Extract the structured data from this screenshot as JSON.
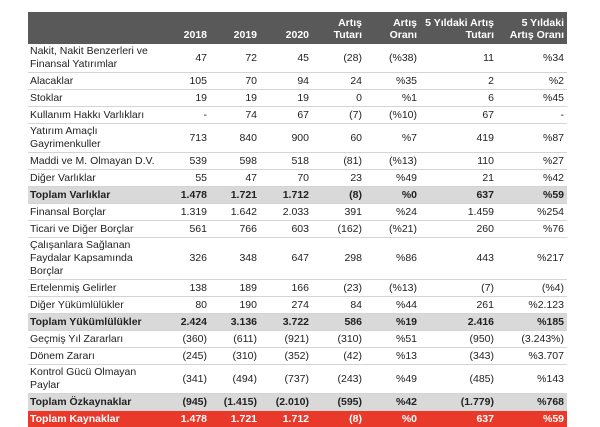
{
  "table": {
    "columns": [
      "2018",
      "2019",
      "2020",
      "Artış Tutarı",
      "Artış Oranı",
      "5 Yıldaki Artış Tutarı",
      "5 Yıldaki Artış Oranı"
    ],
    "rows": [
      [
        "Nakit, Nakit Benzerleri ve Finansal Yatırımlar",
        "47",
        "72",
        "45",
        "(28)",
        "(%38)",
        "11",
        "%34"
      ],
      [
        "Alacaklar",
        "105",
        "70",
        "94",
        "24",
        "%35",
        "2",
        "%2"
      ],
      [
        "Stoklar",
        "19",
        "19",
        "19",
        "0",
        "%1",
        "6",
        "%45"
      ],
      [
        "Kullanım Hakkı Varlıkları",
        "-",
        "74",
        "67",
        "(7)",
        "(%10)",
        "67",
        "-"
      ],
      [
        "Yatırım Amaçlı Gayrimenkuller",
        "713",
        "840",
        "900",
        "60",
        "%7",
        "419",
        "%87"
      ],
      [
        "Maddi ve M. Olmayan D.V.",
        "539",
        "598",
        "518",
        "(81)",
        "(%13)",
        "110",
        "%27"
      ],
      [
        "Diğer Varlıklar",
        "55",
        "47",
        "70",
        "23",
        "%49",
        "21",
        "%42"
      ],
      [
        "Toplam Varlıklar",
        "1.478",
        "1.721",
        "1.712",
        "(8)",
        "%0",
        "637",
        "%59"
      ],
      [
        "Finansal Borçlar",
        "1.319",
        "1.642",
        "2.033",
        "391",
        "%24",
        "1.459",
        "%254"
      ],
      [
        "Ticari ve Diğer Borçlar",
        "561",
        "766",
        "603",
        "(162)",
        "(%21)",
        "260",
        "%76"
      ],
      [
        "Çalışanlara Sağlanan Faydalar Kapsamında Borçlar",
        "326",
        "348",
        "647",
        "298",
        "%86",
        "443",
        "%217"
      ],
      [
        "Ertelenmiş Gelirler",
        "138",
        "189",
        "166",
        "(23)",
        "(%13)",
        "(7)",
        "(%4)"
      ],
      [
        "Diğer Yükümlülükler",
        "80",
        "190",
        "274",
        "84",
        "%44",
        "261",
        "%2.123"
      ],
      [
        "Toplam Yükümlülükler",
        "2.424",
        "3.136",
        "3.722",
        "586",
        "%19",
        "2.416",
        "%185"
      ],
      [
        "Geçmiş Yıl Zararları",
        "(360)",
        "(611)",
        "(921)",
        "(310)",
        "%51",
        "(950)",
        "(3.243%)"
      ],
      [
        "Dönem Zararı",
        "(245)",
        "(310)",
        "(352)",
        "(42)",
        "%13",
        "(343)",
        "%3.707"
      ],
      [
        "Kontrol Gücü Olmayan Paylar",
        "(341)",
        "(494)",
        "(737)",
        "(243)",
        "%49",
        "(485)",
        "%143"
      ],
      [
        "Toplam Özkaynaklar",
        "(945)",
        "(1.415)",
        "(2.010)",
        "(595)",
        "%42",
        "(1.779)",
        "%768"
      ],
      [
        "Toplam Kaynaklar",
        "1.478",
        "1.721",
        "1.712",
        "(8)",
        "%0",
        "637",
        "%59"
      ]
    ]
  }
}
